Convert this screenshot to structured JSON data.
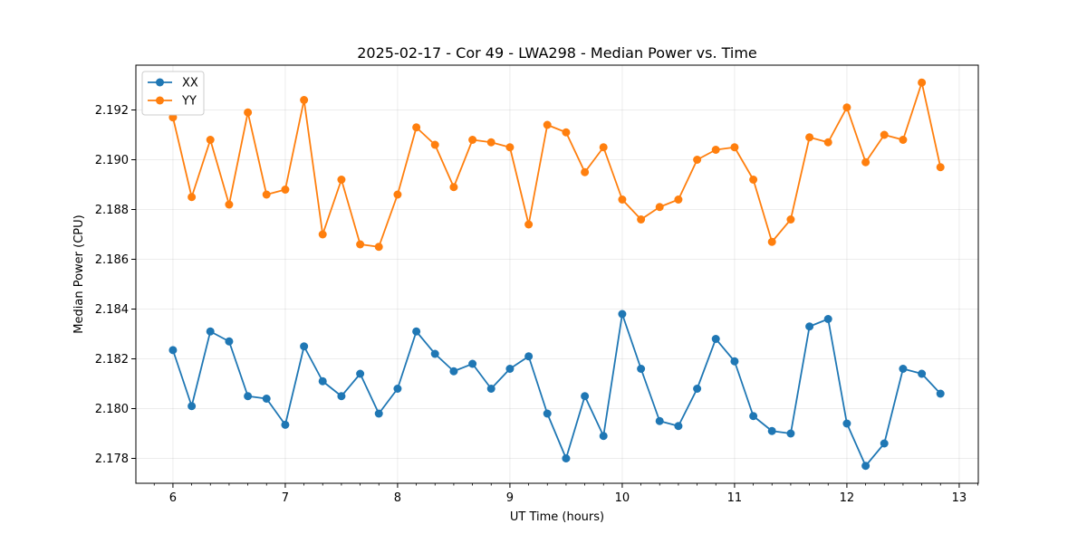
{
  "chart_data": {
    "type": "line",
    "title": "2025-02-17 - Cor 49 - LWA298 - Median Power vs. Time",
    "xlabel": "UT Time (hours)",
    "ylabel": "Median Power (CPU)",
    "xlim": [
      5.67,
      13.17
    ],
    "ylim": [
      2.177,
      2.1938
    ],
    "xticks": [
      "6",
      "7",
      "8",
      "9",
      "10",
      "11",
      "12",
      "13"
    ],
    "xtick_values": [
      6,
      7,
      8,
      9,
      10,
      11,
      12,
      13
    ],
    "yticks": [
      "2.178",
      "2.180",
      "2.182",
      "2.184",
      "2.186",
      "2.188",
      "2.190",
      "2.192"
    ],
    "ytick_values": [
      2.178,
      2.18,
      2.182,
      2.184,
      2.186,
      2.188,
      2.19,
      2.192
    ],
    "grid": true,
    "legend_position": "upper-left",
    "x": [
      6.0,
      6.167,
      6.333,
      6.5,
      6.667,
      6.833,
      7.0,
      7.167,
      7.333,
      7.5,
      7.667,
      7.833,
      8.0,
      8.167,
      8.333,
      8.5,
      8.667,
      8.833,
      9.0,
      9.167,
      9.333,
      9.5,
      9.667,
      9.833,
      10.0,
      10.167,
      10.333,
      10.5,
      10.667,
      10.833,
      11.0,
      11.167,
      11.333,
      11.5,
      11.667,
      11.833,
      12.0,
      12.167,
      12.333,
      12.5,
      12.667,
      12.833
    ],
    "series": [
      {
        "name": "XX",
        "color": "#1f77b4",
        "values": [
          2.18235,
          2.1801,
          2.1831,
          2.1827,
          2.1805,
          2.1804,
          2.17935,
          2.1825,
          2.1811,
          2.1805,
          2.1814,
          2.1798,
          2.1808,
          2.1831,
          2.1822,
          2.1815,
          2.1818,
          2.1808,
          2.1816,
          2.1821,
          2.1798,
          2.178,
          2.1805,
          2.1789,
          2.1838,
          2.1816,
          2.1795,
          2.1793,
          2.1808,
          2.1828,
          2.1819,
          2.1797,
          2.1791,
          2.179,
          2.1833,
          2.1836,
          2.1794,
          2.1777,
          2.1786,
          2.1816,
          2.1814,
          2.1806
        ]
      },
      {
        "name": "YY",
        "color": "#ff7f0e",
        "values": [
          2.1917,
          2.1885,
          2.1908,
          2.1882,
          2.1919,
          2.1886,
          2.1888,
          2.1924,
          2.187,
          2.1892,
          2.1866,
          2.1865,
          2.1886,
          2.1913,
          2.1906,
          2.1889,
          2.1908,
          2.1907,
          2.1905,
          2.1874,
          2.1914,
          2.1911,
          2.1895,
          2.1905,
          2.1884,
          2.1876,
          2.1881,
          2.1884,
          2.19,
          2.1904,
          2.1905,
          2.1892,
          2.1867,
          2.1876,
          2.1909,
          2.1907,
          2.1921,
          2.1899,
          2.191,
          2.1908,
          2.1931,
          2.1897
        ]
      }
    ]
  }
}
